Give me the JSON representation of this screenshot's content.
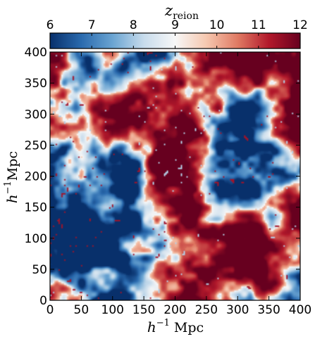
{
  "chart_data": {
    "type": "heatmap",
    "colorbar": {
      "label_var": "z",
      "label_sub": "reion",
      "range": [
        6,
        12
      ],
      "ticks": [
        "6",
        "7",
        "8",
        "9",
        "10",
        "11",
        "12"
      ],
      "colormap": [
        "#08306b",
        "#2a6aae",
        "#6aa4d2",
        "#c8dcec",
        "#f7f7f7",
        "#f6c8b0",
        "#e07a63",
        "#b2182b",
        "#67001f"
      ]
    },
    "x_axis": {
      "label_main": "h",
      "label_exp": "−1",
      "label_unit": " Mpc",
      "range": [
        0,
        400
      ],
      "ticks": [
        "0",
        "50",
        "100",
        "150",
        "200",
        "250",
        "300",
        "350",
        "400"
      ]
    },
    "y_axis": {
      "label_main": "h",
      "label_exp": "−1",
      "label_unit": "Mpc",
      "range": [
        0,
        400
      ],
      "ticks": [
        "0",
        "50",
        "100",
        "150",
        "200",
        "250",
        "300",
        "350",
        "400"
      ]
    },
    "field_seed": 7
  }
}
